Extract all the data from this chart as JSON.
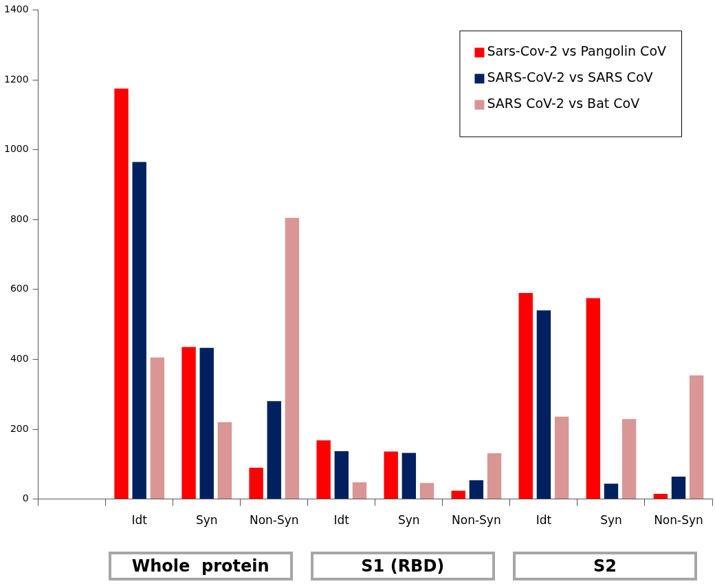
{
  "chart_data": {
    "type": "bar",
    "categories": [
      null,
      "Idt",
      "Syn",
      "Non-Syn",
      "Idt",
      "Syn",
      "Non-Syn",
      "Idt",
      "Syn",
      "Non-Syn"
    ],
    "series": [
      {
        "name": "Sars-Cov-2 vs Pangolin CoV",
        "color": "#ff0000",
        "values": [
          null,
          1175,
          435,
          90,
          168,
          136,
          24,
          590,
          575,
          15
        ]
      },
      {
        "name": "SARS-CoV-2 vs SARS CoV",
        "color": "#002060",
        "values": [
          null,
          965,
          433,
          280,
          137,
          132,
          54,
          540,
          44,
          64
        ]
      },
      {
        "name": "SARS CoV-2 vs Bat CoV",
        "color": "#d99694",
        "values": [
          null,
          405,
          220,
          805,
          48,
          46,
          131,
          236,
          229,
          354
        ]
      }
    ],
    "ylim": [
      0,
      1400
    ],
    "yticks": [
      0,
      200,
      400,
      600,
      800,
      1000,
      1200,
      1400
    ],
    "grid": false,
    "legend": "top right",
    "annotations": [
      "Whole  protein",
      "S1 (RBD)",
      "S2"
    ]
  }
}
